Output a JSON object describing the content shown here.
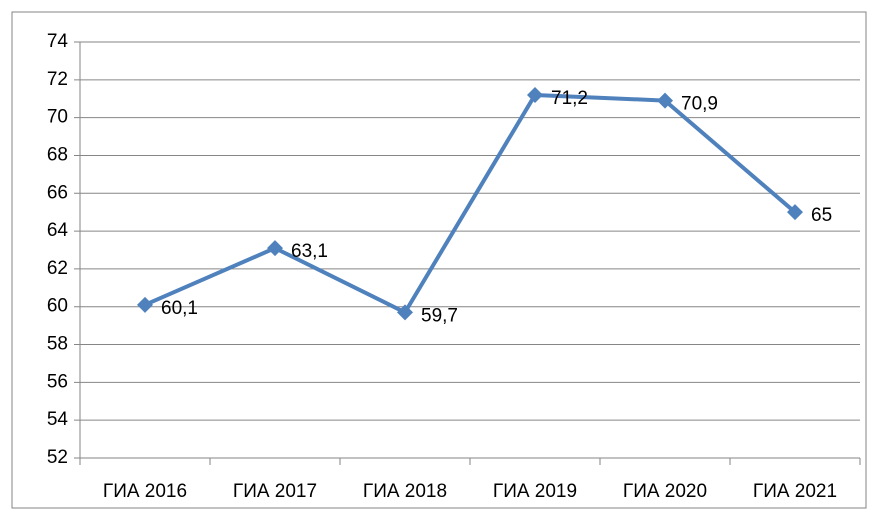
{
  "chart_data": {
    "type": "line",
    "categories": [
      "ГИА 2016",
      "ГИА 2017",
      "ГИА 2018",
      "ГИА 2019",
      "ГИА 2020",
      "ГИА 2021"
    ],
    "series": [
      {
        "color": "#4f81bd",
        "values": [
          60.1,
          63.1,
          59.7,
          71.2,
          70.9,
          65
        ],
        "value_labels": [
          "60,1",
          "63,1",
          "59,7",
          "71,2",
          "70,9",
          "65"
        ]
      }
    ],
    "ylim": [
      52,
      74
    ],
    "yticks": [
      52,
      54,
      56,
      58,
      60,
      62,
      64,
      66,
      68,
      70,
      72,
      74
    ],
    "grid": true
  }
}
